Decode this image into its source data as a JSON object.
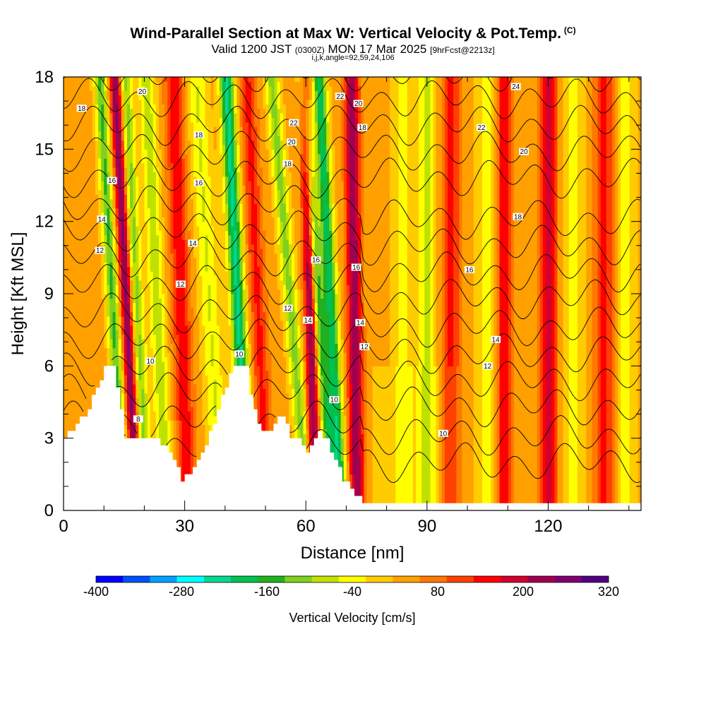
{
  "header": {
    "title": "Wind-Parallel Section at Max W: Vertical Velocity & Pot.Temp.",
    "title_mark": "(C)",
    "valid_prefix": "Valid 1200 JST",
    "valid_zulu": "(0300Z)",
    "valid_date": "MON 17 Mar 2025",
    "forecast": "[9hrFcst@2213z]",
    "indices": "i,j,k,angle=92,59,24,106"
  },
  "chart_data": {
    "type": "heatmap",
    "xlabel": "Distance [nm]",
    "ylabel": "Height [Kft MSL]",
    "xlim": [
      0,
      143
    ],
    "ylim": [
      0,
      18
    ],
    "x_ticks": [
      "0",
      "30",
      "60",
      "90",
      "120"
    ],
    "y_ticks": [
      "0",
      "3",
      "6",
      "9",
      "12",
      "15",
      "18"
    ],
    "colorbar": {
      "label": "Vertical Velocity [cm/s]",
      "tick_labels": [
        "-400",
        "-280",
        "-160",
        "-40",
        "80",
        "200",
        "320"
      ],
      "colors": [
        "#0000ff",
        "#0050ff",
        "#00a0ff",
        "#00ffff",
        "#00d890",
        "#00c050",
        "#20b020",
        "#80d020",
        "#c0e000",
        "#ffff00",
        "#ffcc00",
        "#ffa000",
        "#ff7800",
        "#ff4000",
        "#ff0000",
        "#d00030",
        "#a00050",
        "#800070",
        "#500080"
      ]
    },
    "contour_labels": [
      {
        "label": "18",
        "x": 4.5,
        "y": 16.7
      },
      {
        "label": "20",
        "x": 19.5,
        "y": 17.4
      },
      {
        "label": "16",
        "x": 12,
        "y": 13.7
      },
      {
        "label": "14",
        "x": 9.5,
        "y": 12.1
      },
      {
        "label": "12",
        "x": 9,
        "y": 10.8
      },
      {
        "label": "18",
        "x": 33.5,
        "y": 15.6
      },
      {
        "label": "16",
        "x": 33.5,
        "y": 13.6
      },
      {
        "label": "14",
        "x": 32,
        "y": 11.1
      },
      {
        "label": "12",
        "x": 29,
        "y": 9.4
      },
      {
        "label": "10",
        "x": 21.5,
        "y": 6.2
      },
      {
        "label": "8",
        "x": 18.5,
        "y": 3.8
      },
      {
        "label": "22",
        "x": 57,
        "y": 16.1
      },
      {
        "label": "20",
        "x": 56.5,
        "y": 15.3
      },
      {
        "label": "18",
        "x": 55.5,
        "y": 14.4
      },
      {
        "label": "22",
        "x": 68.5,
        "y": 17.2
      },
      {
        "label": "20",
        "x": 73,
        "y": 16.9
      },
      {
        "label": "18",
        "x": 74,
        "y": 15.9
      },
      {
        "label": "16",
        "x": 62.5,
        "y": 10.4
      },
      {
        "label": "16",
        "x": 72.5,
        "y": 10.1
      },
      {
        "label": "12",
        "x": 55.5,
        "y": 8.4
      },
      {
        "label": "14",
        "x": 60.5,
        "y": 7.9
      },
      {
        "label": "14",
        "x": 73.5,
        "y": 7.8
      },
      {
        "label": "12",
        "x": 74.5,
        "y": 6.8
      },
      {
        "label": "10",
        "x": 43.5,
        "y": 6.5
      },
      {
        "label": "10",
        "x": 67,
        "y": 4.6
      },
      {
        "label": "10",
        "x": 94,
        "y": 3.2
      },
      {
        "label": "24",
        "x": 112,
        "y": 17.6
      },
      {
        "label": "22",
        "x": 103.5,
        "y": 15.9
      },
      {
        "label": "20",
        "x": 114,
        "y": 14.9
      },
      {
        "label": "18",
        "x": 112.5,
        "y": 12.2
      },
      {
        "label": "16",
        "x": 100.5,
        "y": 10.0
      },
      {
        "label": "14",
        "x": 107,
        "y": 7.1
      },
      {
        "label": "12",
        "x": 105,
        "y": 6.0
      }
    ]
  }
}
